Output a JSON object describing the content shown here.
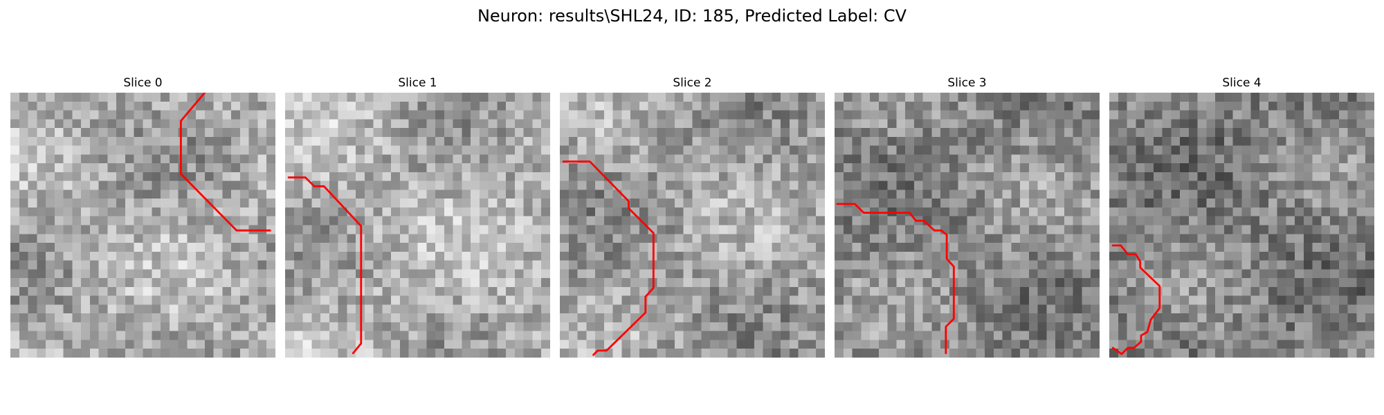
{
  "figure": {
    "title": "Neuron: results\\SHL24, ID: 185, Predicted Label: CV"
  },
  "colors": {
    "trace": "#ff0000",
    "background": "#ffffff"
  },
  "grid_cells": 30,
  "slices": [
    {
      "title": "Slice 0",
      "base_gray": 170,
      "trace": [
        [
          22,
          0
        ],
        [
          19.3,
          3.2
        ],
        [
          19.3,
          9.2
        ],
        [
          25.6,
          15.6
        ],
        [
          29.4,
          15.6
        ]
      ]
    },
    {
      "title": "Slice 1",
      "base_gray": 175,
      "trace": [
        [
          0.4,
          9.6
        ],
        [
          2.3,
          9.6
        ],
        [
          3.3,
          10.6
        ],
        [
          4.4,
          10.6
        ],
        [
          8.6,
          15.1
        ],
        [
          8.6,
          28.4
        ],
        [
          7.7,
          29.5
        ]
      ]
    },
    {
      "title": "Slice 2",
      "base_gray": 160,
      "trace": [
        [
          0.4,
          7.8
        ],
        [
          3.4,
          7.8
        ],
        [
          7.8,
          12.3
        ],
        [
          7.8,
          13.1
        ],
        [
          10.6,
          15.9
        ],
        [
          10.6,
          22.1
        ],
        [
          9.7,
          23.1
        ],
        [
          9.7,
          24.9
        ],
        [
          5.3,
          29.2
        ],
        [
          4.3,
          29.2
        ],
        [
          3.8,
          29.7
        ]
      ]
    },
    {
      "title": "Slice 3",
      "base_gray": 140,
      "trace": [
        [
          0.3,
          12.6
        ],
        [
          2.3,
          12.6
        ],
        [
          3.3,
          13.6
        ],
        [
          8.5,
          13.6
        ],
        [
          9.2,
          14.5
        ],
        [
          10.1,
          14.5
        ],
        [
          11.3,
          15.6
        ],
        [
          12.1,
          15.6
        ],
        [
          12.7,
          16.1
        ],
        [
          12.7,
          18.8
        ],
        [
          13.5,
          19.7
        ],
        [
          13.5,
          25.6
        ],
        [
          12.6,
          26.5
        ],
        [
          12.6,
          29.5
        ]
      ]
    },
    {
      "title": "Slice 4",
      "base_gray": 130,
      "trace": [
        [
          0.4,
          17.3
        ],
        [
          1.3,
          17.3
        ],
        [
          2.1,
          18.3
        ],
        [
          3,
          18.3
        ],
        [
          3.5,
          19.1
        ],
        [
          3.5,
          19.8
        ],
        [
          5.7,
          21.9
        ],
        [
          5.7,
          24.4
        ],
        [
          4.7,
          25.7
        ],
        [
          4.3,
          27.1
        ],
        [
          3.6,
          27.5
        ],
        [
          3.6,
          28.2
        ],
        [
          2.8,
          28.9
        ],
        [
          2.1,
          28.9
        ],
        [
          1.4,
          29.6
        ],
        [
          0.4,
          28.9
        ]
      ]
    }
  ]
}
